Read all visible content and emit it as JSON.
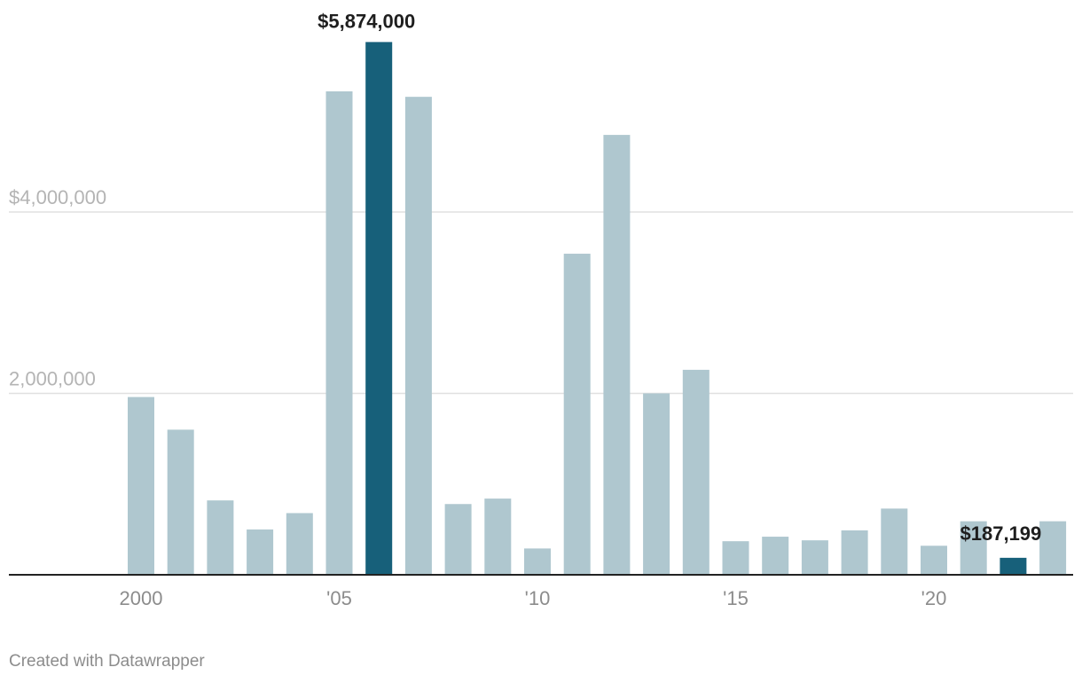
{
  "chart_data": {
    "type": "bar",
    "title": "",
    "xlabel": "",
    "ylabel": "",
    "categories": [
      "2000",
      "2001",
      "2002",
      "2003",
      "2004",
      "2005",
      "2006",
      "2007",
      "2008",
      "2009",
      "2010",
      "2011",
      "2012",
      "2013",
      "2014",
      "2015",
      "2016",
      "2017",
      "2018",
      "2019",
      "2020",
      "2021",
      "2022",
      "2023"
    ],
    "values": [
      1960000,
      1600000,
      820000,
      500000,
      680000,
      5330000,
      5874000,
      5270000,
      780000,
      840000,
      290000,
      3540000,
      4850000,
      2000000,
      2260000,
      370000,
      420000,
      380000,
      490000,
      730000,
      320000,
      590000,
      187199,
      590000
    ],
    "ylim": [
      0,
      6000000
    ],
    "y_ticks": [
      {
        "value": 2000000,
        "label": "2,000,000"
      },
      {
        "value": 4000000,
        "label": "$4,000,000"
      }
    ],
    "x_ticks": [
      {
        "category": "2000",
        "label": "2000"
      },
      {
        "category": "2005",
        "label": "'05"
      },
      {
        "category": "2010",
        "label": "'10"
      },
      {
        "category": "2015",
        "label": "'15"
      },
      {
        "category": "2020",
        "label": "'20"
      }
    ],
    "highlighted": [
      "2006",
      "2022"
    ],
    "data_labels": [
      {
        "category": "2006",
        "label": "$5,874,000"
      },
      {
        "category": "2022",
        "label": "$187,199"
      }
    ],
    "colors": {
      "bar": "#afc7cf",
      "highlight": "#17607a",
      "grid": "#e0e0e0",
      "baseline": "#222222"
    },
    "grid": true
  },
  "footer": {
    "credit": "Created with Datawrapper"
  }
}
